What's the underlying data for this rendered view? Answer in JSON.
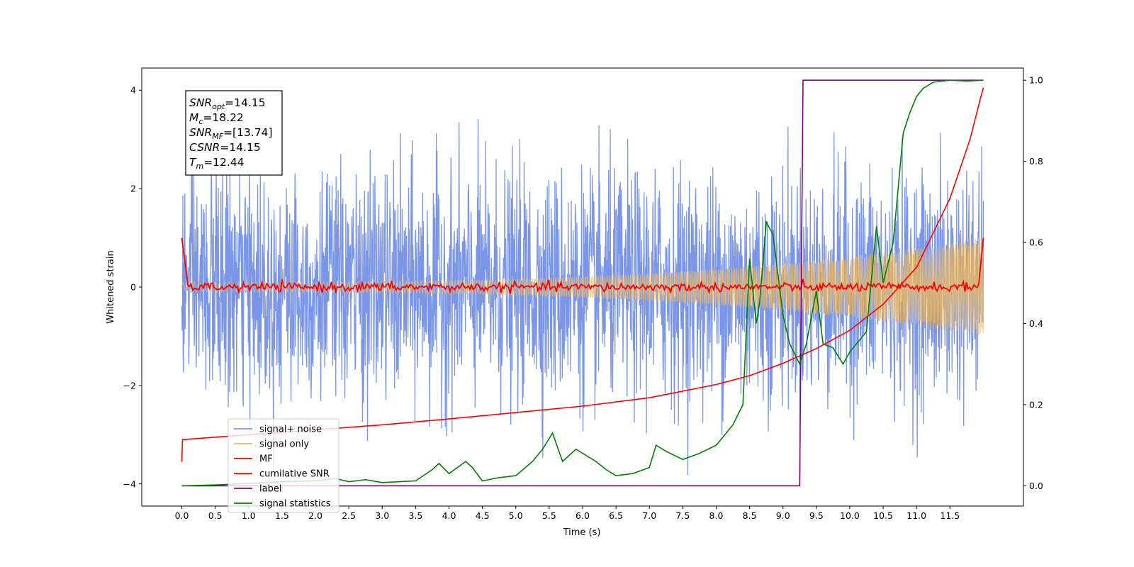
{
  "chart_data": {
    "type": "line",
    "xlabel": "Time (s)",
    "ylabel": "Whitened strain",
    "xlim": [
      -0.6,
      12.6
    ],
    "ylim": [
      -4.45,
      4.45
    ],
    "y2lim": [
      -0.05,
      1.03
    ],
    "x_ticks": [
      "0.0",
      "0.5",
      "1.0",
      "1.5",
      "2.0",
      "2.5",
      "3.0",
      "3.5",
      "4.0",
      "4.5",
      "5.0",
      "5.5",
      "6.0",
      "6.5",
      "7.0",
      "7.5",
      "8.0",
      "8.5",
      "9.0",
      "9.5",
      "10.0",
      "10.5",
      "11.0",
      "11.5"
    ],
    "y_ticks": [
      "4",
      "2",
      "0",
      "−2",
      "−4"
    ],
    "y2_ticks": [
      "1.0",
      "0.8",
      "0.6",
      "0.4",
      "0.2",
      "0.0"
    ],
    "legend_position": "lower-left",
    "annotation": [
      {
        "name": "SNR",
        "sub": "opt",
        "value": "=14.15"
      },
      {
        "name": "M",
        "sub": "c",
        "value": "=18.22"
      },
      {
        "name": "SNR",
        "sub": "MF",
        "value": "=[13.74]"
      },
      {
        "name": "CSNR",
        "sub": "",
        "value": "=14.15"
      },
      {
        "name": "T",
        "sub": "m",
        "value": "=12.44"
      }
    ],
    "series": [
      {
        "name": "signal+ noise",
        "color": "#7b96e6",
        "axis": "left",
        "kind": "noise",
        "x_range": [
          0,
          12
        ],
        "amplitude_range": [
          -4.0,
          4.0
        ]
      },
      {
        "name": "signal only",
        "color": "#e8b86a",
        "axis": "left",
        "kind": "chirp",
        "x_range": [
          0,
          12
        ],
        "envelope_start": 0.1,
        "envelope_end": 1.0
      },
      {
        "name": "MF",
        "color": "#ff0000",
        "axis": "left",
        "kind": "matched_filter",
        "x_range": [
          0,
          12
        ],
        "start_value": 1.0,
        "end_value": 1.0
      },
      {
        "name": "cumilative SNR",
        "color": "#ff0000",
        "axis": "left",
        "x": [
          0,
          0.01,
          1,
          2,
          3,
          4,
          5,
          6,
          7,
          8,
          8.5,
          9,
          9.5,
          10,
          10.5,
          11,
          11.5,
          11.8,
          11.95,
          12
        ],
        "y": [
          -3.55,
          -3.1,
          -3.0,
          -2.9,
          -2.8,
          -2.68,
          -2.55,
          -2.42,
          -2.25,
          -1.98,
          -1.8,
          -1.55,
          -1.25,
          -0.88,
          -0.35,
          0.4,
          1.8,
          3.0,
          3.8,
          4.05
        ]
      },
      {
        "name": "label",
        "color": "#800080",
        "axis": "right",
        "x": [
          0,
          9.25,
          9.3,
          12
        ],
        "y": [
          0,
          0,
          1,
          1
        ]
      },
      {
        "name": "signal statistics",
        "color": "#008000",
        "axis": "right",
        "x": [
          0,
          0.5,
          1.0,
          1.5,
          2.0,
          2.3,
          2.5,
          2.75,
          3.0,
          3.5,
          3.75,
          3.85,
          4.0,
          4.25,
          4.35,
          4.5,
          4.75,
          5.0,
          5.25,
          5.4,
          5.55,
          5.7,
          5.9,
          6.0,
          6.2,
          6.35,
          6.5,
          6.75,
          7.0,
          7.1,
          7.25,
          7.5,
          7.75,
          8.0,
          8.25,
          8.4,
          8.5,
          8.6,
          8.65,
          8.75,
          8.85,
          9.0,
          9.1,
          9.25,
          9.35,
          9.5,
          9.6,
          9.75,
          9.9,
          10.0,
          10.25,
          10.4,
          10.5,
          10.65,
          10.8,
          10.9,
          11.0,
          11.1,
          11.25,
          11.5,
          11.75,
          12
        ],
        "y": [
          0.0,
          0.002,
          0.006,
          0.01,
          0.012,
          0.018,
          0.01,
          0.015,
          0.008,
          0.012,
          0.04,
          0.055,
          0.03,
          0.06,
          0.045,
          0.012,
          0.02,
          0.025,
          0.06,
          0.09,
          0.13,
          0.06,
          0.09,
          0.08,
          0.06,
          0.04,
          0.025,
          0.03,
          0.045,
          0.1,
          0.085,
          0.065,
          0.08,
          0.1,
          0.15,
          0.2,
          0.56,
          0.4,
          0.45,
          0.65,
          0.62,
          0.42,
          0.35,
          0.3,
          0.35,
          0.48,
          0.35,
          0.34,
          0.3,
          0.33,
          0.38,
          0.64,
          0.5,
          0.6,
          0.87,
          0.92,
          0.96,
          0.98,
          0.995,
          1.0,
          0.998,
          1.0
        ]
      }
    ]
  }
}
